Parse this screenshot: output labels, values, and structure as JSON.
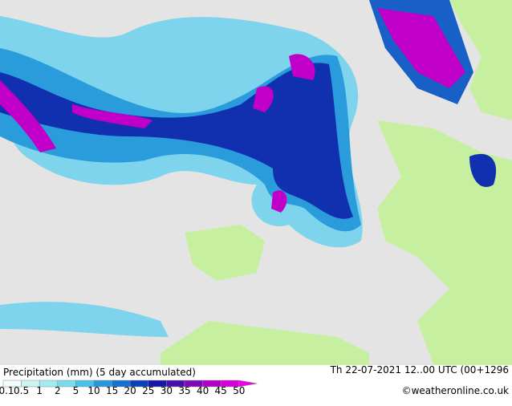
{
  "title": "Precipitation (mm) (5 day accumulated)",
  "valid_time": "Th 22-07-2021 12..00 UTC (00+1296",
  "credit": "©weatheronline.co.uk",
  "legend": {
    "levels": [
      0.1,
      0.5,
      1,
      2,
      5,
      10,
      15,
      20,
      25,
      30,
      35,
      40,
      45,
      50
    ],
    "colors": [
      "#f4fcfc",
      "#c8f4f4",
      "#a0ecf0",
      "#78dcec",
      "#48c0e8",
      "#2898dc",
      "#1870d0",
      "#0840b8",
      "#1818a8",
      "#4810a8",
      "#8008b8",
      "#b000c8",
      "#d800d8",
      "#f000e8"
    ]
  }
}
